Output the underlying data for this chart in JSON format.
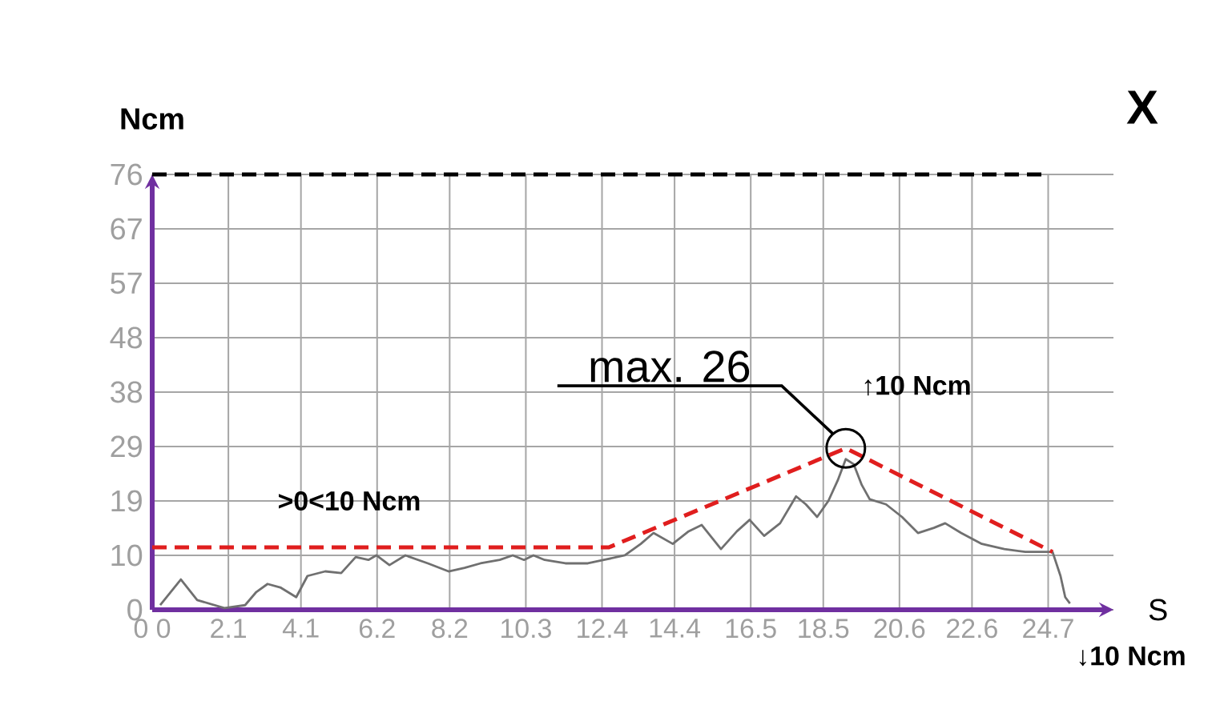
{
  "chart_data": {
    "type": "line",
    "xlabel": "S",
    "ylabel": "Ncm",
    "xlim": [
      0,
      26.5
    ],
    "ylim": [
      0,
      76
    ],
    "xticks": [
      {
        "value": 0,
        "label": "0 0"
      },
      2.1,
      4.1,
      6.2,
      8.2,
      10.3,
      12.4,
      14.4,
      16.5,
      18.5,
      20.6,
      22.6,
      24.7
    ],
    "yticks": [
      0,
      {
        "value": 9.5,
        "label": "10"
      },
      19,
      {
        "value": 28.5,
        "label": "29"
      },
      38,
      {
        "value": 47.5,
        "label": "48"
      },
      57,
      {
        "value": 66.5,
        "label": "67"
      },
      76
    ],
    "grid": true,
    "series": [
      {
        "color": "#707070",
        "x": [
          0.22,
          0.79,
          1.24,
          1.99,
          2.56,
          2.87,
          3.18,
          3.53,
          3.97,
          4.28,
          4.77,
          5.21,
          5.61,
          5.96,
          6.18,
          6.54,
          6.98,
          7.6,
          8.17,
          8.61,
          9.05,
          9.58,
          9.94,
          10.25,
          10.51,
          10.82,
          11.39,
          12.01,
          12.45,
          13.03,
          13.47,
          13.82,
          14.35,
          14.79,
          15.15,
          15.68,
          16.12,
          16.47,
          16.87,
          17.31,
          17.75,
          18.02,
          18.33,
          18.64,
          18.9,
          19.12,
          19.34,
          19.56,
          19.78,
          20.23,
          20.67,
          21.11,
          21.55,
          21.86,
          22.3,
          22.87,
          23.49,
          24.07,
          24.82,
          25.04,
          25.17,
          25.3
        ],
        "values": [
          0.8,
          5.3,
          1.7,
          0.3,
          0.8,
          3.1,
          4.5,
          3.9,
          2.2,
          5.9,
          6.7,
          6.4,
          9.2,
          8.7,
          9.5,
          7.8,
          9.5,
          8.1,
          6.7,
          7.3,
          8.1,
          8.7,
          9.5,
          8.7,
          9.5,
          8.7,
          8.1,
          8.1,
          8.7,
          9.5,
          11.5,
          13.4,
          11.5,
          13.7,
          14.8,
          10.6,
          13.7,
          15.7,
          12.9,
          15.1,
          19.8,
          18.4,
          16.2,
          19,
          22.6,
          26.3,
          25.4,
          21.8,
          19.3,
          18.4,
          16.2,
          13.4,
          14.3,
          15.1,
          13.4,
          11.5,
          10.6,
          10.1,
          10.1,
          5.9,
          2.2,
          1.1
        ]
      },
      {
        "color": "#e01e1e",
        "line_style": "dashed",
        "x": [
          0,
          12.59,
          19.12,
          24.82
        ],
        "values": [
          10.9,
          10.9,
          28.2,
          10.1
        ]
      }
    ],
    "ref_lines": [
      {
        "axis": "y",
        "value": 76,
        "color": "#000000",
        "line_style": "dashed"
      }
    ],
    "annotations": [
      {
        "text": "max. 26",
        "x": 19.12,
        "y": 28.2
      },
      ">0<10 Ncm",
      "↑10 Ncm",
      "↓10 Ncm",
      "X"
    ]
  }
}
